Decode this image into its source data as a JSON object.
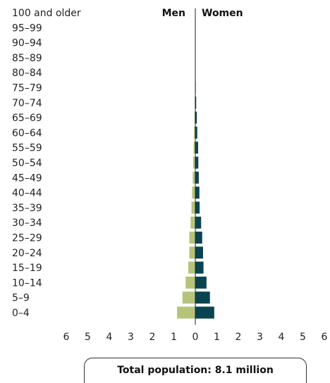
{
  "chart_data": {
    "type": "bar",
    "orientation": "horizontal-population-pyramid",
    "categories": [
      "100 and older",
      "95–99",
      "90–94",
      "85–89",
      "80–84",
      "75–79",
      "70–74",
      "65–69",
      "60–64",
      "55–59",
      "50–54",
      "45–49",
      "40–44",
      "35–39",
      "30–34",
      "25–29",
      "20–24",
      "15–19",
      "10–14",
      "5–9",
      "0–4"
    ],
    "series": [
      {
        "name": "Men",
        "color": "#b5c47a",
        "values": [
          0,
          0,
          0,
          0,
          0.01,
          0.02,
          0.03,
          0.04,
          0.06,
          0.08,
          0.1,
          0.12,
          0.15,
          0.18,
          0.22,
          0.28,
          0.28,
          0.33,
          0.45,
          0.6,
          0.85
        ]
      },
      {
        "name": "Women",
        "color": "#0b4450",
        "values": [
          0,
          0,
          0,
          0,
          0.01,
          0.02,
          0.04,
          0.07,
          0.09,
          0.13,
          0.14,
          0.16,
          0.19,
          0.2,
          0.27,
          0.32,
          0.36,
          0.38,
          0.52,
          0.68,
          0.88
        ]
      }
    ],
    "xlim": [
      -6,
      6
    ],
    "xticks": [
      "6",
      "5",
      "4",
      "3",
      "2",
      "1",
      "0",
      "1",
      "2",
      "3",
      "4",
      "5",
      "6"
    ],
    "legend_left": "Men",
    "legend_right": "Women"
  },
  "footer": {
    "total": "Total population: 8.1 million"
  }
}
